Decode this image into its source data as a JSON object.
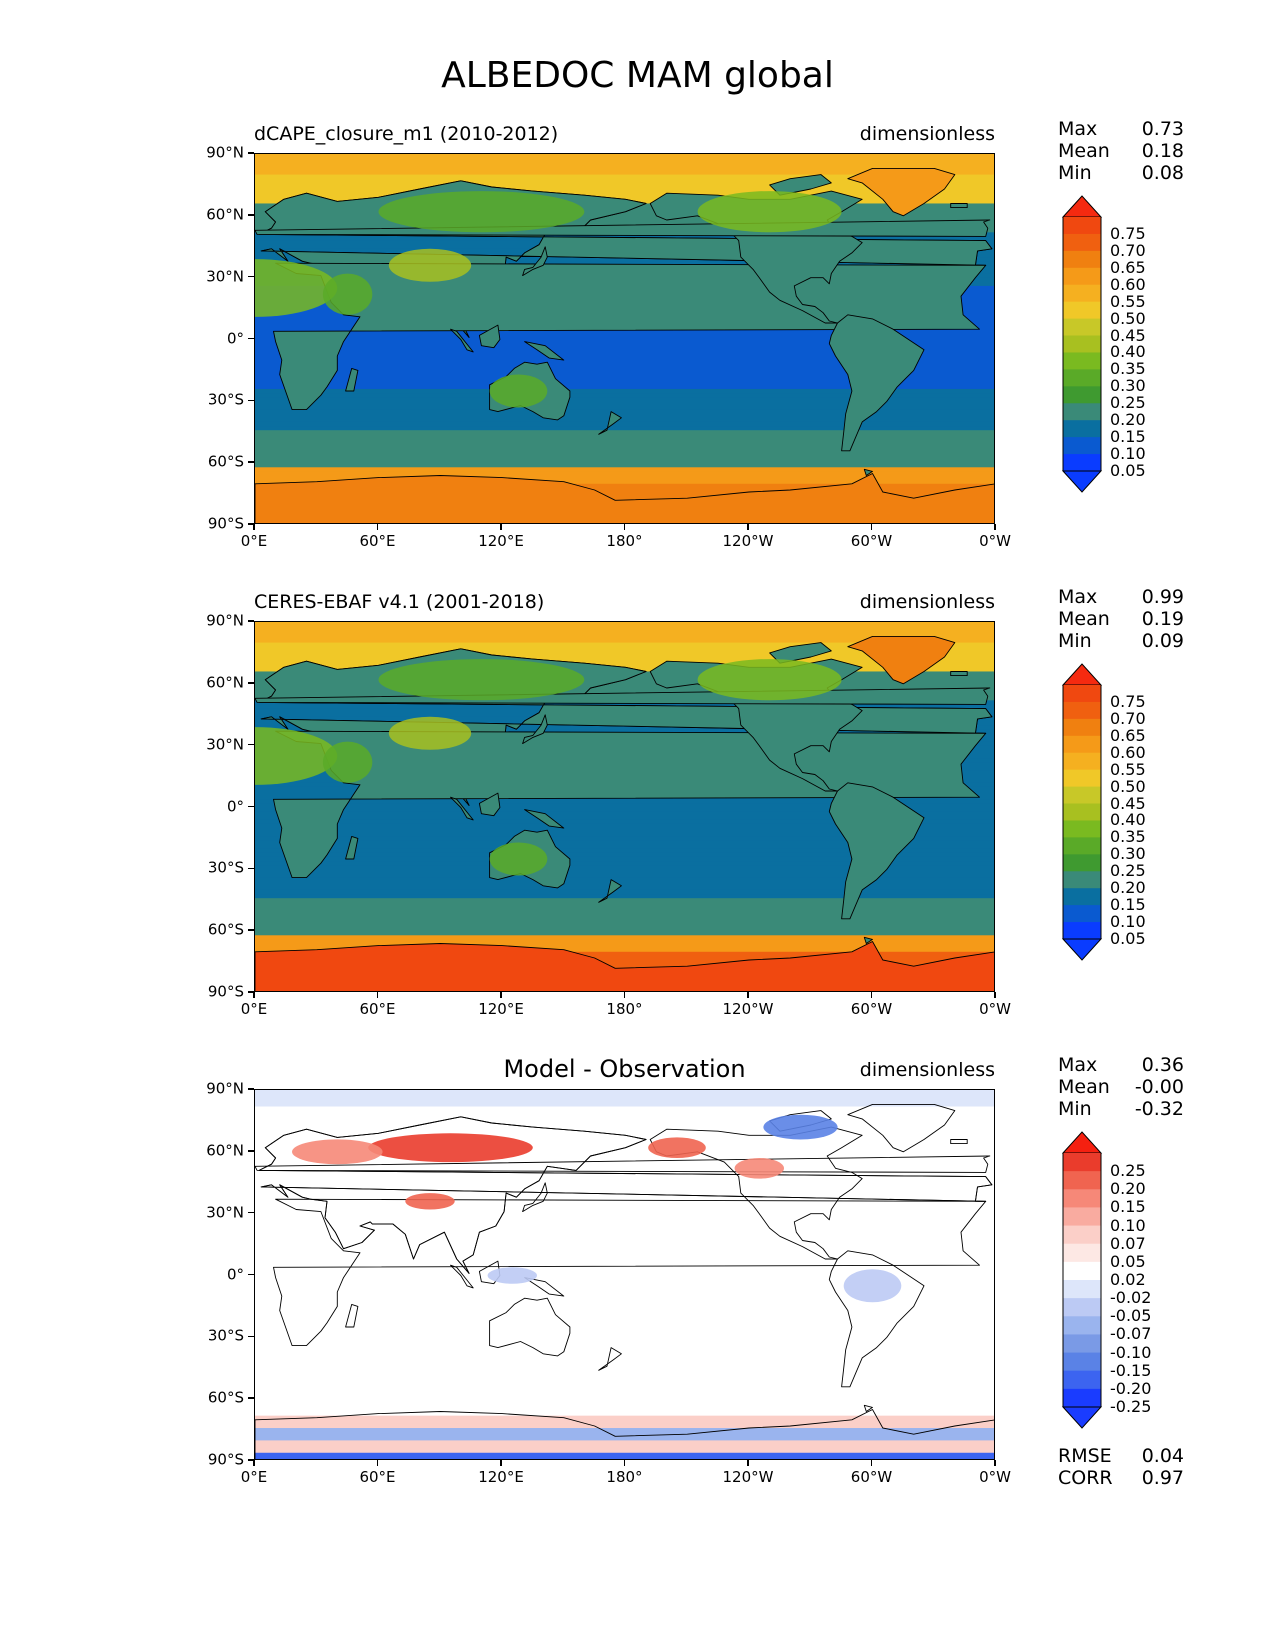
{
  "title": "ALBEDOC MAM global",
  "lat_ticks": [
    "90°N",
    "60°N",
    "30°N",
    "0°",
    "30°S",
    "60°S",
    "90°S"
  ],
  "lon_ticks": [
    "0°E",
    "60°E",
    "120°E",
    "180°",
    "120°W",
    "60°W",
    "0°W"
  ],
  "colors": {
    "abs_levels": [
      "#0a3cff",
      "#0a5ad0",
      "#0a6fa0",
      "#3a8a78",
      "#3f9a30",
      "#5aaa28",
      "#7aba20",
      "#a8c020",
      "#c8c828",
      "#f0c828",
      "#f5b020",
      "#f59a18",
      "#f08010",
      "#f06010",
      "#f04810",
      "#f52a10"
    ],
    "diff_levels": [
      "#1a3cff",
      "#3c64f0",
      "#5a82e6",
      "#7a9ae6",
      "#9ab4ee",
      "#bccaf4",
      "#dde6fa",
      "#ffffff",
      "#fde8e4",
      "#fbcfc8",
      "#f9aba0",
      "#f68878",
      "#f06450",
      "#ea3c2c",
      "#f52010"
    ]
  },
  "panels": [
    {
      "title": "dCAPE_closure_m1 (2010-2012)",
      "units": "dimensionless",
      "stats": [
        {
          "label": "Max",
          "value": "0.73"
        },
        {
          "label": "Mean",
          "value": "0.18"
        },
        {
          "label": "Min",
          "value": "0.08"
        }
      ],
      "colorbar": {
        "type": "absolute",
        "labels": [
          "0.75",
          "0.70",
          "0.65",
          "0.60",
          "0.55",
          "0.50",
          "0.45",
          "0.40",
          "0.35",
          "0.30",
          "0.25",
          "0.20",
          "0.15",
          "0.10",
          "0.05"
        ]
      }
    },
    {
      "title": "CERES-EBAF v4.1 (2001-2018)",
      "units": "dimensionless",
      "stats": [
        {
          "label": "Max",
          "value": "0.99"
        },
        {
          "label": "Mean",
          "value": "0.19"
        },
        {
          "label": "Min",
          "value": "0.09"
        }
      ],
      "colorbar": {
        "type": "absolute",
        "labels": [
          "0.75",
          "0.70",
          "0.65",
          "0.60",
          "0.55",
          "0.50",
          "0.45",
          "0.40",
          "0.35",
          "0.30",
          "0.25",
          "0.20",
          "0.15",
          "0.10",
          "0.05"
        ]
      }
    },
    {
      "title": "Model - Observation",
      "units": "dimensionless",
      "stats": [
        {
          "label": "Max",
          "value": "0.36"
        },
        {
          "label": "Mean",
          "value": "-0.00"
        },
        {
          "label": "Min",
          "value": "-0.32"
        }
      ],
      "colorbar": {
        "type": "difference",
        "labels": [
          "0.25",
          "0.20",
          "0.15",
          "0.10",
          "0.07",
          "0.05",
          "0.02",
          "-0.02",
          "-0.05",
          "-0.07",
          "-0.10",
          "-0.15",
          "-0.20",
          "-0.25"
        ]
      },
      "metrics": [
        {
          "label": "RMSE",
          "value": "0.04"
        },
        {
          "label": "CORR",
          "value": "0.97"
        }
      ]
    }
  ]
}
